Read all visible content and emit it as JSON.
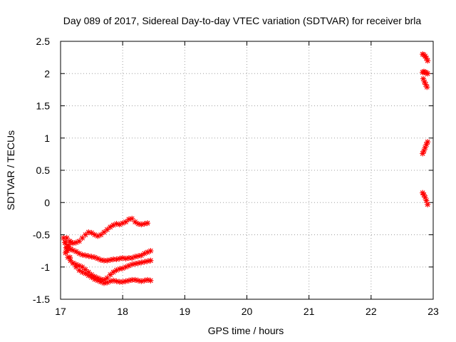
{
  "chart_data": {
    "type": "scatter",
    "title": "Day 089 of 2017, Sidereal Day-to-day VTEC variation (SDTVAR) for receiver brla",
    "xlabel": "GPS time / hours",
    "ylabel": "SDTVAR / TECUs",
    "xlim": [
      17,
      23
    ],
    "ylim": [
      -1.5,
      2.5
    ],
    "xticks": [
      17,
      18,
      19,
      20,
      21,
      22,
      23
    ],
    "xtick_labels": [
      "17",
      "18",
      "19",
      "20",
      "21",
      "22",
      "23"
    ],
    "yticks": [
      -1.5,
      -1,
      -0.5,
      0,
      0.5,
      1,
      1.5,
      2,
      2.5
    ],
    "ytick_labels": [
      "-1.5",
      "-1",
      "-0.5",
      "0",
      "0.5",
      "1",
      "1.5",
      "2",
      "2.5"
    ],
    "grid": true,
    "marker": "star",
    "color": "#ff0000",
    "series": [
      {
        "x": [
          17.1,
          17.15,
          17.2,
          17.25,
          17.3,
          17.35,
          17.4,
          17.45,
          17.5,
          17.55,
          17.6,
          17.65,
          17.7,
          17.75,
          17.8,
          17.85,
          17.9,
          17.95,
          18.0,
          18.05,
          18.1,
          18.15,
          18.2,
          18.25,
          18.3,
          18.35,
          18.4
        ],
        "values": [
          -0.55,
          -0.6,
          -0.63,
          -0.62,
          -0.6,
          -0.55,
          -0.5,
          -0.46,
          -0.47,
          -0.5,
          -0.52,
          -0.5,
          -0.46,
          -0.42,
          -0.38,
          -0.35,
          -0.33,
          -0.34,
          -0.32,
          -0.3,
          -0.26,
          -0.25,
          -0.3,
          -0.33,
          -0.34,
          -0.33,
          -0.32
        ]
      },
      {
        "x": [
          17.08,
          17.12,
          17.16,
          17.2,
          17.25,
          17.3,
          17.35,
          17.4,
          17.45,
          17.5,
          17.55,
          17.6,
          17.65,
          17.7,
          17.75,
          17.8,
          17.85,
          17.9,
          17.95,
          18.0,
          18.05,
          18.1,
          18.15,
          18.2,
          18.25,
          18.3,
          18.35,
          18.4,
          18.45
        ],
        "values": [
          -0.62,
          -0.68,
          -0.72,
          -0.74,
          -0.76,
          -0.79,
          -0.81,
          -0.82,
          -0.83,
          -0.84,
          -0.85,
          -0.87,
          -0.89,
          -0.9,
          -0.9,
          -0.89,
          -0.88,
          -0.88,
          -0.87,
          -0.86,
          -0.87,
          -0.86,
          -0.86,
          -0.84,
          -0.83,
          -0.82,
          -0.79,
          -0.77,
          -0.75
        ]
      },
      {
        "x": [
          17.08,
          17.12,
          17.16,
          17.2,
          17.25,
          17.3,
          17.35,
          17.4,
          17.45,
          17.5,
          17.55,
          17.6,
          17.65,
          17.7,
          17.75,
          17.8,
          17.85,
          17.9,
          17.95,
          18.0,
          18.05,
          18.1,
          18.15,
          18.2,
          18.25,
          18.3,
          18.35,
          18.4,
          18.45
        ],
        "values": [
          -0.78,
          -0.85,
          -0.9,
          -0.94,
          -0.96,
          -0.98,
          -1.0,
          -1.04,
          -1.08,
          -1.12,
          -1.15,
          -1.17,
          -1.19,
          -1.2,
          -1.17,
          -1.12,
          -1.08,
          -1.05,
          -1.03,
          -1.02,
          -1.0,
          -0.98,
          -0.96,
          -0.95,
          -0.94,
          -0.93,
          -0.92,
          -0.91,
          -0.9
        ]
      },
      {
        "x": [
          17.1,
          17.15,
          17.2,
          17.25,
          17.3,
          17.35,
          17.4,
          17.45,
          17.5,
          17.55,
          17.6,
          17.65,
          17.7,
          17.75,
          17.8,
          17.85,
          17.9,
          17.95,
          18.0,
          18.05,
          18.1,
          18.15,
          18.2,
          18.25,
          18.3,
          18.35,
          18.4,
          18.45
        ],
        "values": [
          -0.72,
          -0.85,
          -0.94,
          -1.0,
          -1.05,
          -1.08,
          -1.1,
          -1.13,
          -1.16,
          -1.19,
          -1.21,
          -1.23,
          -1.25,
          -1.24,
          -1.22,
          -1.21,
          -1.22,
          -1.23,
          -1.23,
          -1.22,
          -1.21,
          -1.2,
          -1.2,
          -1.21,
          -1.22,
          -1.21,
          -1.2,
          -1.21
        ]
      },
      {
        "x": [
          17.05,
          17.07,
          17.09,
          17.11,
          17.13,
          17.16
        ],
        "values": [
          -0.55,
          -0.62,
          -0.7,
          -0.75,
          -0.68,
          -0.62
        ]
      },
      {
        "x": [
          22.83,
          22.85,
          22.87,
          22.89,
          22.91
        ],
        "values": [
          2.3,
          2.29,
          2.27,
          2.24,
          2.2
        ]
      },
      {
        "x": [
          22.83,
          22.85,
          22.87,
          22.89,
          22.91
        ],
        "values": [
          2.02,
          2.03,
          2.02,
          2.01,
          2.0
        ]
      },
      {
        "x": [
          22.84,
          22.86,
          22.88,
          22.9
        ],
        "values": [
          1.92,
          1.87,
          1.83,
          1.79
        ]
      },
      {
        "x": [
          22.83,
          22.85,
          22.87,
          22.89,
          22.91
        ],
        "values": [
          0.76,
          0.8,
          0.85,
          0.9,
          0.94
        ]
      },
      {
        "x": [
          22.83,
          22.85,
          22.87,
          22.89,
          22.91
        ],
        "values": [
          0.15,
          0.12,
          0.08,
          0.03,
          -0.03
        ]
      }
    ]
  }
}
